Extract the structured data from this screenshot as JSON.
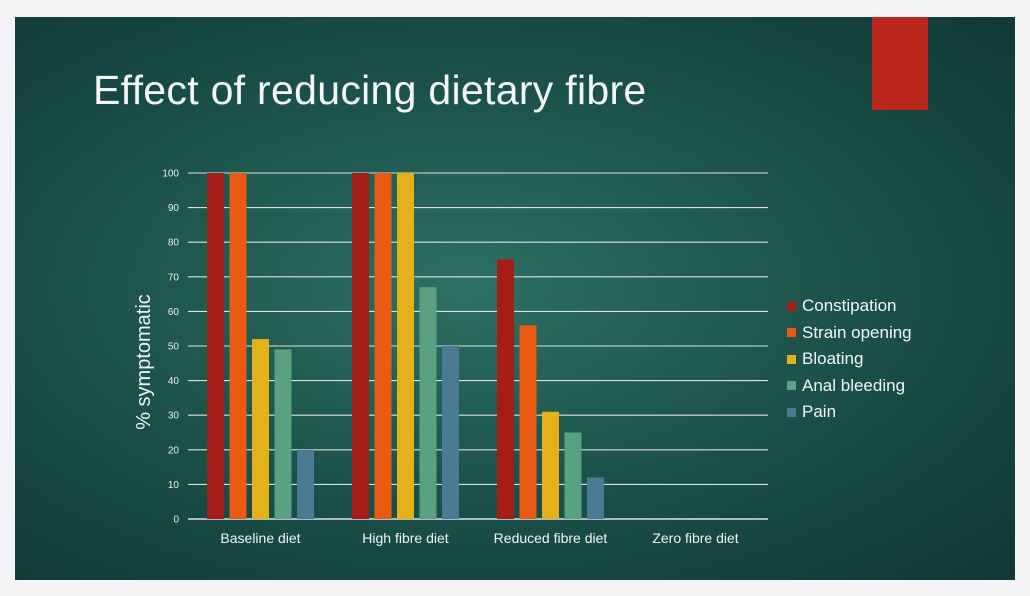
{
  "slide": {
    "title": "Effect of reducing dietary fibre"
  },
  "chart_data": {
    "type": "bar",
    "title": "",
    "xlabel": "",
    "ylabel": "% symptomatic",
    "ylim": [
      0,
      100
    ],
    "yticks": [
      0,
      10,
      20,
      30,
      40,
      50,
      60,
      70,
      80,
      90,
      100
    ],
    "grid": true,
    "legend_position": "right",
    "categories": [
      "Baseline diet",
      "High fibre diet",
      "Reduced fibre diet",
      "Zero fibre diet"
    ],
    "series": [
      {
        "name": "Constipation",
        "color": "#a51d17",
        "values": [
          100,
          100,
          75,
          0
        ]
      },
      {
        "name": "Strain opening",
        "color": "#e95b14",
        "values": [
          100,
          100,
          56,
          0
        ]
      },
      {
        "name": "Bloating",
        "color": "#e5b11b",
        "values": [
          52,
          100,
          31,
          0
        ]
      },
      {
        "name": "Anal bleeding",
        "color": "#58a281",
        "values": [
          49,
          67,
          25,
          0
        ]
      },
      {
        "name": "Pain",
        "color": "#4b7a93",
        "values": [
          20,
          50,
          12,
          0
        ]
      }
    ]
  },
  "colors": {
    "accent": "#b8261d",
    "gridline": "#d9e2e0",
    "text": "#f3f6f5"
  }
}
